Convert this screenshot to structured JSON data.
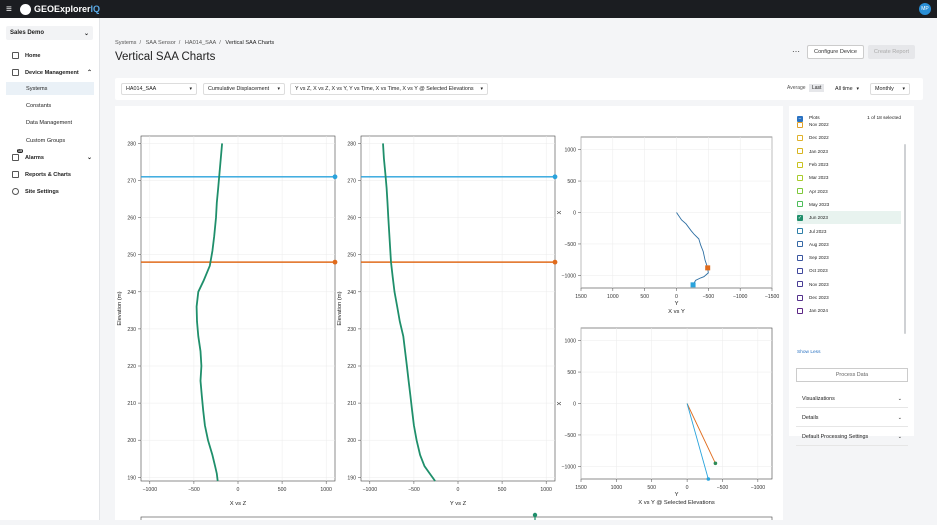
{
  "topbar": {
    "menu_glyph": "≡",
    "brand_main": "GEOExplorer",
    "brand_suffix": "IQ",
    "avatar_initials": "MP"
  },
  "sidebar": {
    "org": "Sales Demo",
    "items": [
      {
        "label": "Home",
        "icon": "home-icon"
      },
      {
        "label": "Device Management",
        "icon": "device-icon"
      },
      {
        "label": "Systems"
      },
      {
        "label": "Constants"
      },
      {
        "label": "Data Management"
      },
      {
        "label": "Custom Groups"
      },
      {
        "label": "Alarms",
        "icon": "bell-icon",
        "badge": "15"
      },
      {
        "label": "Reports & Charts",
        "icon": "report-icon"
      },
      {
        "label": "Site Settings",
        "icon": "gear-icon"
      }
    ]
  },
  "breadcrumb": [
    "Systems",
    "SAA Sensor",
    "HA014_SAA",
    "Vertical SAA Charts"
  ],
  "page_title": "Vertical SAA Charts",
  "actions": {
    "configure": "Configure Device",
    "report": "Create Report"
  },
  "toolbar": {
    "device": "HA014_SAA",
    "measure": "Cumulative Displacement",
    "views": "Y vs Z, X vs Z, X vs Y, Y vs Time, X vs Time, X vs Y @ Selected Elevations",
    "agg_average": "Average",
    "agg_last": "Last",
    "range": "All time",
    "interval": "Monthly"
  },
  "legend": {
    "header": "Plots",
    "count": "1 of 18 selected",
    "items": [
      {
        "label": "Nov 2022",
        "color": "#e0a22a",
        "checked": false
      },
      {
        "label": "Dec 2022",
        "color": "#e0b22a",
        "checked": false
      },
      {
        "label": "Jan 2023",
        "color": "#d8b520",
        "checked": false
      },
      {
        "label": "Feb 2023",
        "color": "#c9c21e",
        "checked": false
      },
      {
        "label": "Mar 2023",
        "color": "#a9cc2a",
        "checked": false
      },
      {
        "label": "Apr 2023",
        "color": "#7ec83a",
        "checked": false
      },
      {
        "label": "May 2023",
        "color": "#4dbd5a",
        "checked": false
      },
      {
        "label": "Jun 2023",
        "color": "#1f8f6b",
        "checked": true
      },
      {
        "label": "Jul 2023",
        "color": "#2f7fa8",
        "checked": false
      },
      {
        "label": "Aug 2023",
        "color": "#3668a5",
        "checked": false
      },
      {
        "label": "Sep 2023",
        "color": "#3a56a0",
        "checked": false
      },
      {
        "label": "Oct 2023",
        "color": "#40489c",
        "checked": false
      },
      {
        "label": "Nov 2023",
        "color": "#493d95",
        "checked": false
      },
      {
        "label": "Dec 2023",
        "color": "#54318c",
        "checked": false
      },
      {
        "label": "Jan 2024",
        "color": "#5c2785",
        "checked": false
      }
    ],
    "show_less": "Show Less"
  },
  "right_actions": {
    "process": "Process Data",
    "visualizations": "Visualizations",
    "details": "Details",
    "defaults": "Default Processing Settings"
  },
  "chart_data": [
    {
      "type": "line",
      "xlabel": "X vs Z",
      "ylabel": "Elevation (m)",
      "xticks": [
        -1000,
        -500,
        0,
        500,
        1000
      ],
      "yticks": [
        190,
        200,
        210,
        220,
        230,
        240,
        250,
        260,
        270,
        280
      ],
      "xlim": [
        -1100,
        1100
      ],
      "ylim": [
        189,
        282
      ],
      "series": [
        {
          "color": "#1f8f6b",
          "points": [
            [
              -180,
              280
            ],
            [
              -195,
              276
            ],
            [
              -210,
              272
            ],
            [
              -225,
              268
            ],
            [
              -240,
              264
            ],
            [
              -250,
              260
            ],
            [
              -270,
              255
            ],
            [
              -290,
              251
            ],
            [
              -320,
              247
            ],
            [
              -390,
              243
            ],
            [
              -450,
              240
            ],
            [
              -470,
              236
            ],
            [
              -465,
              232
            ],
            [
              -450,
              228
            ],
            [
              -425,
              224
            ],
            [
              -415,
              220
            ],
            [
              -425,
              216
            ],
            [
              -410,
              212
            ],
            [
              -395,
              208
            ],
            [
              -375,
              204
            ],
            [
              -340,
              200
            ],
            [
              -290,
              196
            ],
            [
              -260,
              193
            ],
            [
              -240,
              191
            ],
            [
              -230,
              189
            ]
          ]
        }
      ],
      "hlines": [
        {
          "y": 271,
          "color": "#2aa3dc"
        },
        {
          "y": 248,
          "color": "#e06b1c"
        }
      ]
    },
    {
      "type": "line",
      "xlabel": "Y vs Z",
      "ylabel": "Elevation (m)",
      "xticks": [
        -1000,
        -500,
        0,
        500,
        1000
      ],
      "yticks": [
        190,
        200,
        210,
        220,
        230,
        240,
        250,
        260,
        270,
        280
      ],
      "xlim": [
        -1100,
        1100
      ],
      "ylim": [
        189,
        282
      ],
      "series": [
        {
          "color": "#1f8f6b",
          "points": [
            [
              -850,
              280
            ],
            [
              -840,
              276
            ],
            [
              -825,
              272
            ],
            [
              -810,
              268
            ],
            [
              -800,
              264
            ],
            [
              -790,
              260
            ],
            [
              -780,
              256
            ],
            [
              -770,
              252
            ],
            [
              -760,
              248
            ],
            [
              -740,
              244
            ],
            [
              -720,
              240
            ],
            [
              -690,
              236
            ],
            [
              -660,
              232
            ],
            [
              -620,
              228
            ],
            [
              -600,
              224
            ],
            [
              -580,
              220
            ],
            [
              -560,
              216
            ],
            [
              -540,
              212
            ],
            [
              -520,
              208
            ],
            [
              -500,
              204
            ],
            [
              -470,
              200
            ],
            [
              -430,
              196
            ],
            [
              -380,
              193
            ],
            [
              -320,
              191
            ],
            [
              -260,
              189
            ]
          ]
        }
      ],
      "hlines": [
        {
          "y": 271,
          "color": "#2aa3dc"
        },
        {
          "y": 248,
          "color": "#e06b1c"
        }
      ]
    },
    {
      "type": "line",
      "xlabel": "X vs Y",
      "ylabel": "X",
      "xticks": [
        1500,
        1000,
        500,
        0,
        -500,
        -1000,
        -1500
      ],
      "yticks": [
        1000,
        500,
        0,
        -500,
        -1000
      ],
      "xlim": [
        1500,
        -1500
      ],
      "ylim": [
        -1200,
        1200
      ],
      "series": [
        {
          "color": "#2e6fa3",
          "points": [
            [
              0,
              0
            ],
            [
              -80,
              -120
            ],
            [
              -150,
              -180
            ],
            [
              -230,
              -290
            ],
            [
              -280,
              -350
            ],
            [
              -350,
              -420
            ],
            [
              -380,
              -520
            ],
            [
              -420,
              -620
            ],
            [
              -450,
              -760
            ],
            [
              -490,
              -880
            ],
            [
              -500,
              -960
            ],
            [
              -430,
              -1020
            ],
            [
              -380,
              -1040
            ],
            [
              -300,
              -1080
            ],
            [
              -260,
              -1150
            ]
          ]
        }
      ]
    },
    {
      "type": "scatter",
      "xlabel": "X vs Y @ Selected Elevations",
      "ylabel": "X",
      "xticks": [
        1500,
        1000,
        500,
        0,
        -500,
        -1000
      ],
      "yticks": [
        1000,
        500,
        0,
        -500,
        -1000
      ],
      "xlim": [
        1500,
        -1200
      ],
      "ylim": [
        -1200,
        1200
      ],
      "series": [
        {
          "color": "#e06b1c",
          "points": [
            [
              0,
              0
            ],
            [
              -400,
              -950
            ]
          ]
        },
        {
          "color": "#2aa3dc",
          "points": [
            [
              0,
              0
            ],
            [
              -300,
              -1200
            ]
          ]
        }
      ]
    }
  ]
}
